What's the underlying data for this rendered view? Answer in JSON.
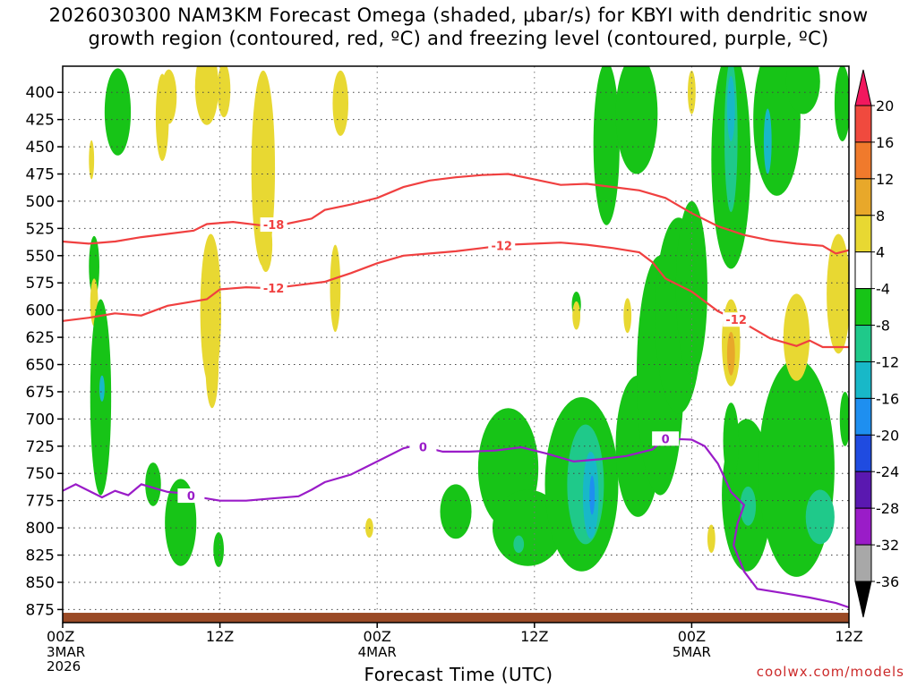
{
  "title": {
    "line1": "2026030300 NAM3KM Forecast Omega (shaded, μbar/s) for KBYI with dendritic snow",
    "line2": "growth region (contoured, red, ºC) and freezing level (contoured, purple, ºC)"
  },
  "credit": "coolwx.com/models",
  "chart_data": {
    "type": "heatmap",
    "x_axis": {
      "label": "Forecast Time (UTC)",
      "ticks": [
        {
          "hour": 0,
          "label": "00Z",
          "sub": [
            "3MAR",
            "2026"
          ]
        },
        {
          "hour": 12,
          "label": "12Z",
          "sub": []
        },
        {
          "hour": 24,
          "label": "00Z",
          "sub": [
            "4MAR"
          ]
        },
        {
          "hour": 36,
          "label": "12Z",
          "sub": []
        },
        {
          "hour": 48,
          "label": "00Z",
          "sub": [
            "5MAR"
          ]
        },
        {
          "hour": 60,
          "label": "12Z",
          "sub": []
        }
      ],
      "range": [
        0,
        60
      ]
    },
    "y_axis": {
      "label": "",
      "unit": "hPa",
      "inverted": true,
      "ticks": [
        400,
        425,
        450,
        475,
        500,
        525,
        550,
        575,
        600,
        625,
        650,
        675,
        700,
        725,
        750,
        775,
        800,
        825,
        850,
        875
      ],
      "range": [
        376,
        887
      ]
    },
    "colorbar": {
      "labels": [
        "20",
        "16",
        "12",
        "8",
        "4",
        "-4",
        "-8",
        "-12",
        "-16",
        "-20",
        "-24",
        "-28",
        "-32",
        "-36"
      ],
      "colors": [
        "#f2185e",
        "#f04a3e",
        "#f07a2c",
        "#e8a82a",
        "#e8d832",
        "#ffffff",
        "#17c417",
        "#1fc98a",
        "#18b8c8",
        "#1e8ff0",
        "#1f4be0",
        "#5a18b0",
        "#9a1cc8",
        "#a8a8a8",
        "#000000"
      ]
    },
    "series": [
      {
        "name": "-18",
        "color": "#f04040",
        "label": "-18",
        "points": [
          [
            0,
            537
          ],
          [
            2,
            539
          ],
          [
            4,
            537
          ],
          [
            6,
            533
          ],
          [
            8,
            530
          ],
          [
            10,
            527
          ],
          [
            11,
            521
          ],
          [
            13,
            519
          ],
          [
            15,
            522
          ],
          [
            17,
            521
          ],
          [
            19,
            516
          ],
          [
            20,
            508
          ],
          [
            22,
            503
          ],
          [
            24,
            497
          ],
          [
            26,
            487
          ],
          [
            28,
            481
          ],
          [
            30,
            478
          ],
          [
            32,
            476
          ],
          [
            34,
            475
          ],
          [
            36,
            480
          ],
          [
            38,
            485
          ],
          [
            40,
            484
          ],
          [
            42,
            487
          ],
          [
            44,
            490
          ],
          [
            46,
            497
          ],
          [
            48,
            511
          ],
          [
            50,
            523
          ],
          [
            52,
            531
          ],
          [
            54,
            536
          ],
          [
            56,
            539
          ],
          [
            58,
            541
          ],
          [
            59,
            548
          ],
          [
            60,
            545
          ]
        ],
        "label_hour": 16.1
      },
      {
        "name": "-12",
        "color": "#f04040",
        "label": "-12",
        "points": [
          [
            0,
            610
          ],
          [
            2,
            607
          ],
          [
            4,
            603
          ],
          [
            6,
            605
          ],
          [
            8,
            596
          ],
          [
            10,
            592
          ],
          [
            11,
            590
          ],
          [
            12,
            581
          ],
          [
            14,
            579
          ],
          [
            16,
            580
          ],
          [
            18,
            577
          ],
          [
            20,
            574
          ],
          [
            22,
            566
          ],
          [
            24,
            557
          ],
          [
            26,
            550
          ],
          [
            28,
            548
          ],
          [
            30,
            546
          ],
          [
            32,
            543
          ],
          [
            34,
            540
          ],
          [
            36,
            539
          ],
          [
            38,
            538
          ],
          [
            40,
            540
          ],
          [
            42,
            543
          ],
          [
            44,
            547
          ],
          [
            45,
            556
          ],
          [
            46,
            571
          ],
          [
            48,
            583
          ],
          [
            50,
            601
          ],
          [
            52,
            612
          ],
          [
            54,
            626
          ],
          [
            56,
            633
          ],
          [
            57,
            628
          ],
          [
            58,
            634
          ],
          [
            60,
            634
          ]
        ],
        "label_hours": [
          16.1,
          33.5,
          51.4
        ]
      },
      {
        "name": "0",
        "color": "#9a1cc8",
        "label": "0",
        "points": [
          [
            0,
            766
          ],
          [
            1,
            760
          ],
          [
            3,
            772
          ],
          [
            4,
            766
          ],
          [
            5,
            770
          ],
          [
            6,
            760
          ],
          [
            8,
            767
          ],
          [
            9,
            768
          ],
          [
            10,
            771
          ],
          [
            12,
            775
          ],
          [
            14,
            775
          ],
          [
            16,
            773
          ],
          [
            18,
            771
          ],
          [
            19,
            765
          ],
          [
            20,
            758
          ],
          [
            22,
            751
          ],
          [
            24,
            739
          ],
          [
            26,
            727
          ],
          [
            27,
            724
          ],
          [
            29,
            730
          ],
          [
            31,
            730
          ],
          [
            33,
            729
          ],
          [
            35,
            726
          ],
          [
            37,
            732
          ],
          [
            39,
            739
          ],
          [
            41,
            737
          ],
          [
            43,
            734
          ],
          [
            45,
            728
          ],
          [
            46,
            718
          ],
          [
            48,
            719
          ],
          [
            49,
            725
          ],
          [
            50,
            741
          ],
          [
            51,
            767
          ],
          [
            52,
            779
          ],
          [
            51.5,
            796
          ],
          [
            51.2,
            816
          ],
          [
            52,
            840
          ],
          [
            53,
            856
          ],
          [
            55,
            860
          ],
          [
            57,
            864
          ],
          [
            59,
            869
          ],
          [
            60,
            873
          ]
        ],
        "label_hours": [
          9.8,
          27.5,
          46.0
        ]
      }
    ]
  }
}
